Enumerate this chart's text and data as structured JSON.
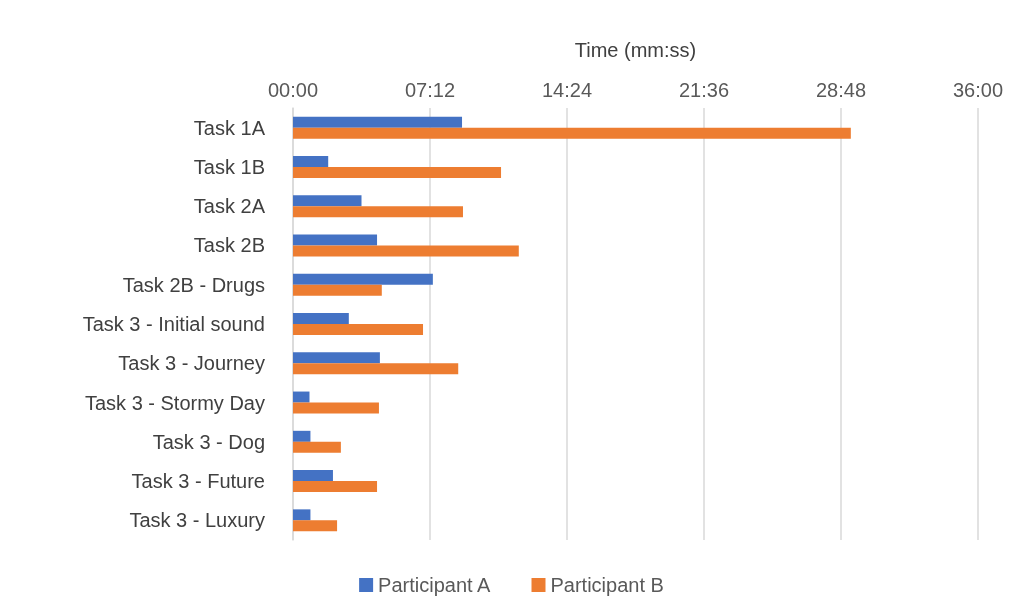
{
  "chart_data": {
    "type": "bar",
    "orientation": "horizontal",
    "xlabel": "Time (mm:ss)",
    "categories": [
      "Task 1A",
      "Task 1B",
      "Task 2A",
      "Task 2B",
      "Task 2B - Drugs",
      "Task 3 - Initial sound",
      "Task 3 - Journey",
      "Task 3 - Stormy Day",
      "Task 3 - Dog",
      "Task 3 - Future",
      "Task 3 - Luxury"
    ],
    "series": [
      {
        "name": "Participant A",
        "color": "#4472c4",
        "values": [
          533,
          111,
          216,
          265,
          441,
          176,
          274,
          52,
          55,
          126,
          55
        ]
      },
      {
        "name": "Participant B",
        "color": "#ed7d31",
        "values": [
          1759,
          656,
          536,
          712,
          280,
          410,
          521,
          271,
          151,
          265,
          139
        ]
      }
    ],
    "xlim": [
      0,
      2160
    ],
    "xticks": [
      {
        "value": 0,
        "label": "00:00"
      },
      {
        "value": 432,
        "label": "07:12"
      },
      {
        "value": 864,
        "label": "14:24"
      },
      {
        "value": 1296,
        "label": "21:36"
      },
      {
        "value": 1728,
        "label": "28:48"
      },
      {
        "value": 2160,
        "label": "36:00"
      }
    ],
    "grid": "x",
    "legend": "bottom"
  }
}
